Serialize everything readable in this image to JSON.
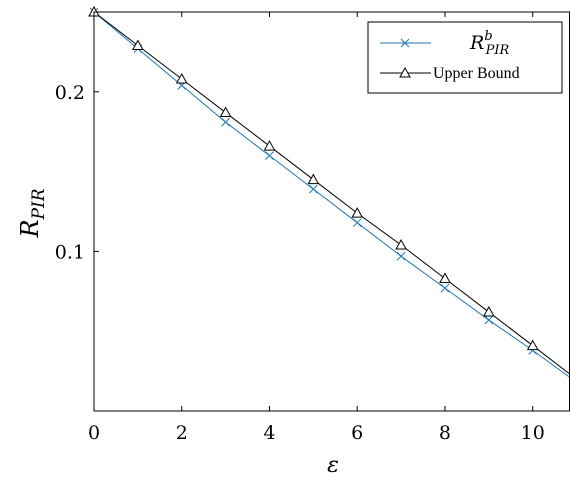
{
  "chart_data": {
    "type": "line",
    "xlabel": "ε",
    "ylabel": {
      "main": "R",
      "sub": "PIR"
    },
    "xlim": [
      0,
      10.85
    ],
    "ylim": [
      0,
      0.25
    ],
    "x_ticks": [
      0,
      2,
      4,
      6,
      8,
      10
    ],
    "x_tick_labels": [
      "0",
      "2",
      "4",
      "6",
      "8",
      "10"
    ],
    "y_ticks": [
      0.1,
      0.2
    ],
    "y_tick_labels": [
      "0.1",
      "0.2"
    ],
    "grid": false,
    "legend": "top-right",
    "series": [
      {
        "name": {
          "main": "R",
          "sup": "b",
          "sub": "PIR"
        },
        "color": "#1f77b4",
        "marker": "x",
        "x": [
          0,
          1,
          2,
          3,
          4,
          5,
          6,
          7,
          8,
          9,
          10,
          10.85
        ],
        "y": [
          0.25,
          0.227,
          0.204,
          0.181,
          0.16,
          0.139,
          0.118,
          0.097,
          0.077,
          0.057,
          0.038,
          0.021
        ]
      },
      {
        "name": "Upper Bound",
        "color": "#000000",
        "marker": "triangle",
        "x": [
          0,
          1,
          2,
          3,
          4,
          5,
          6,
          7,
          8,
          9,
          10,
          10.85
        ],
        "y": [
          0.25,
          0.229,
          0.208,
          0.187,
          0.166,
          0.145,
          0.124,
          0.104,
          0.083,
          0.062,
          0.041,
          0.023
        ]
      }
    ]
  }
}
